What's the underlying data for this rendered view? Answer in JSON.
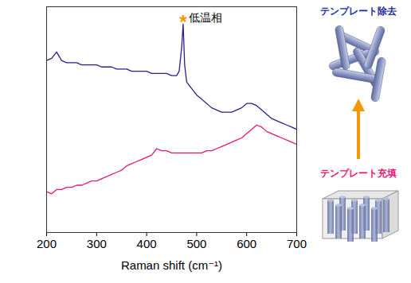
{
  "chart_data": {
    "type": "line",
    "x_label": "Raman shift (cm⁻¹)",
    "x": [
      200,
      210,
      220,
      230,
      240,
      250,
      260,
      270,
      280,
      290,
      300,
      310,
      320,
      330,
      340,
      350,
      360,
      370,
      380,
      390,
      400,
      410,
      420,
      430,
      440,
      450,
      460,
      465,
      470,
      473,
      476,
      480,
      490,
      500,
      510,
      520,
      530,
      540,
      550,
      560,
      570,
      580,
      590,
      600,
      610,
      620,
      630,
      640,
      650,
      660,
      670,
      680,
      690,
      700
    ],
    "series": [
      {
        "name": "テンプレート除去",
        "color": "#2b1f8f",
        "values": [
          80,
          81,
          84,
          80,
          79,
          79,
          79,
          78,
          78,
          78,
          78,
          77,
          77,
          77,
          76,
          76,
          76,
          75,
          75,
          75,
          75,
          74,
          74,
          74,
          74,
          73,
          73,
          75,
          86,
          97,
          78,
          70,
          67,
          64,
          62,
          60,
          58,
          57,
          56,
          56,
          56,
          57,
          58,
          60,
          60,
          59,
          57,
          55,
          53,
          52,
          51,
          50,
          49,
          48
        ]
      },
      {
        "name": "テンプレート充填",
        "color": "#e8177a",
        "values": [
          19,
          18,
          20,
          20,
          21,
          21,
          22,
          22,
          23,
          24,
          24,
          25,
          26,
          27,
          28,
          29,
          31,
          32,
          33,
          34,
          35,
          36,
          39,
          38,
          38,
          37,
          37,
          37,
          37,
          37,
          37,
          37,
          37,
          37,
          37,
          38,
          38,
          39,
          40,
          41,
          42,
          43,
          44,
          46,
          48,
          50,
          49,
          47,
          46,
          45,
          44,
          43,
          42,
          41
        ]
      }
    ],
    "xlim": [
      200,
      700
    ],
    "xticks": [
      200,
      300,
      400,
      500,
      600,
      700
    ],
    "ylim": [
      0,
      105
    ],
    "tick_labels": "x",
    "annotations": [
      {
        "text": "*",
        "x": 473,
        "y": 100,
        "color": "#f39800"
      },
      {
        "text": "低温相",
        "x": 484,
        "y": 100,
        "color": "#000000"
      }
    ]
  },
  "diagram": {
    "top": {
      "label": "テンプレート除去",
      "color": "#1a2fa0"
    },
    "bottom": {
      "label": "テンプレート充填",
      "color": "#e8177a"
    },
    "arrow_color": "#f39800"
  }
}
